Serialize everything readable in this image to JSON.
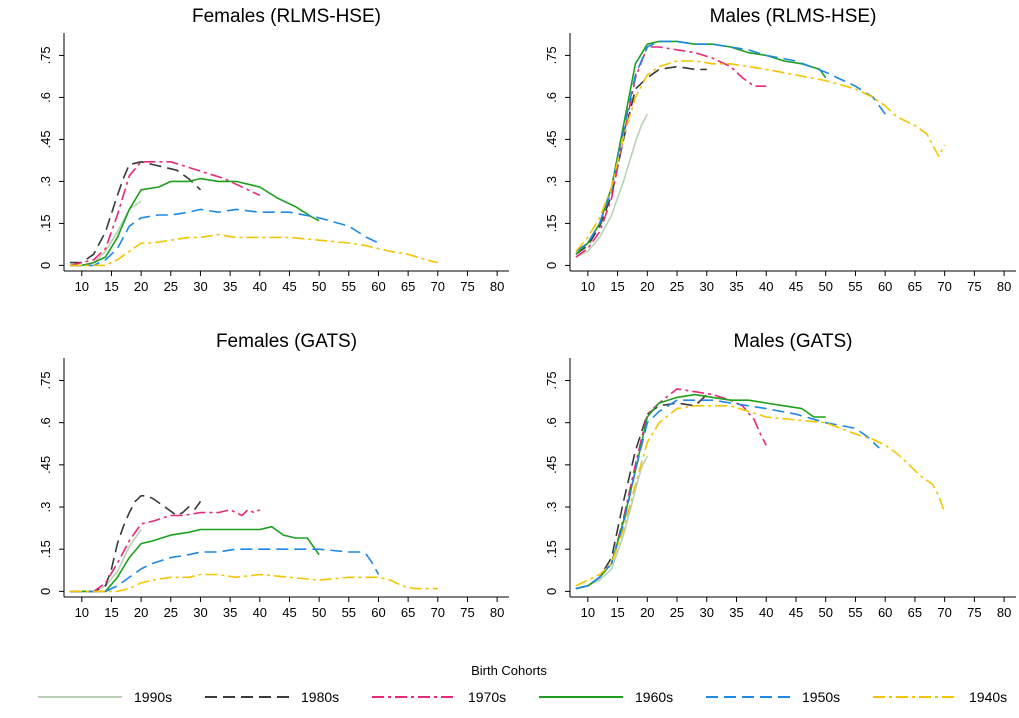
{
  "legend": {
    "title": "Birth Cohorts",
    "entries": [
      {
        "name": "1990s",
        "color": "#b7d3b3",
        "dash": "solid"
      },
      {
        "name": "1980s",
        "color": "#3a3a3a",
        "dash": "longdash"
      },
      {
        "name": "1970s",
        "color": "#e8287a",
        "dash": "longdash-dot"
      },
      {
        "name": "1960s",
        "color": "#1ea01e",
        "dash": "solid"
      },
      {
        "name": "1950s",
        "color": "#1e88e5",
        "dash": "longdash"
      },
      {
        "name": "1940s",
        "color": "#f5c400",
        "dash": "longdash-dot"
      }
    ]
  },
  "chart_data": [
    {
      "type": "line",
      "title": "Females (RLMS-HSE)",
      "xlim": [
        7,
        82
      ],
      "ylim": [
        -0.02,
        0.83
      ],
      "xticks": [
        "10",
        "15",
        "20",
        "25",
        "30",
        "35",
        "40",
        "45",
        "50",
        "55",
        "60",
        "65",
        "70",
        "75",
        "80"
      ],
      "yticks": [
        "0",
        ".15",
        ".3",
        ".45",
        ".6",
        ".75"
      ],
      "series": [
        {
          "name": "1990s",
          "x": [
            8,
            10,
            12,
            14,
            16,
            18,
            20
          ],
          "y": [
            0.0,
            0.0,
            0.01,
            0.05,
            0.12,
            0.2,
            0.23
          ]
        },
        {
          "name": "1980s",
          "x": [
            8,
            10,
            12,
            14,
            16,
            17,
            18,
            20,
            22,
            24,
            26,
            28,
            30
          ],
          "y": [
            0.01,
            0.01,
            0.04,
            0.12,
            0.25,
            0.31,
            0.36,
            0.37,
            0.36,
            0.35,
            0.34,
            0.31,
            0.27
          ]
        },
        {
          "name": "1970s",
          "x": [
            8,
            10,
            12,
            14,
            16,
            18,
            20,
            22,
            25,
            28,
            31,
            34,
            36,
            38,
            40
          ],
          "y": [
            0.0,
            0.01,
            0.02,
            0.06,
            0.18,
            0.32,
            0.37,
            0.37,
            0.37,
            0.35,
            0.33,
            0.31,
            0.29,
            0.27,
            0.25
          ]
        },
        {
          "name": "1960s",
          "x": [
            8,
            10,
            12,
            14,
            16,
            18,
            20,
            23,
            25,
            28,
            30,
            33,
            36,
            38,
            40,
            43,
            46,
            49,
            50
          ],
          "y": [
            0.0,
            0.0,
            0.01,
            0.03,
            0.1,
            0.2,
            0.27,
            0.28,
            0.3,
            0.3,
            0.31,
            0.3,
            0.3,
            0.29,
            0.28,
            0.24,
            0.21,
            0.17,
            0.16
          ]
        },
        {
          "name": "1950s",
          "x": [
            8,
            10,
            12,
            14,
            16,
            18,
            20,
            23,
            25,
            28,
            30,
            33,
            36,
            40,
            45,
            50,
            55,
            58,
            60
          ],
          "y": [
            0.0,
            0.0,
            0.0,
            0.02,
            0.06,
            0.14,
            0.17,
            0.18,
            0.18,
            0.19,
            0.2,
            0.19,
            0.2,
            0.19,
            0.19,
            0.17,
            0.14,
            0.1,
            0.08
          ]
        },
        {
          "name": "1940s",
          "x": [
            8,
            10,
            12,
            14,
            16,
            18,
            20,
            22,
            25,
            28,
            30,
            33,
            36,
            40,
            45,
            50,
            55,
            58,
            60,
            62,
            65,
            68,
            70
          ],
          "y": [
            0.0,
            0.0,
            0.0,
            0.0,
            0.02,
            0.05,
            0.08,
            0.08,
            0.09,
            0.1,
            0.1,
            0.11,
            0.1,
            0.1,
            0.1,
            0.09,
            0.08,
            0.07,
            0.06,
            0.05,
            0.04,
            0.02,
            0.01
          ]
        }
      ]
    },
    {
      "type": "line",
      "title": "Males (RLMS-HSE)",
      "xlim": [
        7,
        82
      ],
      "ylim": [
        -0.02,
        0.83
      ],
      "xticks": [
        "10",
        "15",
        "20",
        "25",
        "30",
        "35",
        "40",
        "45",
        "50",
        "55",
        "60",
        "65",
        "70",
        "75",
        "80"
      ],
      "yticks": [
        "0",
        ".15",
        ".3",
        ".45",
        ".6",
        ".75"
      ],
      "series": [
        {
          "name": "1990s",
          "x": [
            8,
            10,
            12,
            14,
            16,
            18,
            19,
            20
          ],
          "y": [
            0.03,
            0.05,
            0.1,
            0.18,
            0.3,
            0.44,
            0.5,
            0.54
          ]
        },
        {
          "name": "1980s",
          "x": [
            8,
            10,
            12,
            14,
            16,
            18,
            20,
            22,
            25,
            28,
            30
          ],
          "y": [
            0.04,
            0.07,
            0.14,
            0.25,
            0.45,
            0.63,
            0.67,
            0.7,
            0.71,
            0.7,
            0.7
          ]
        },
        {
          "name": "1970s",
          "x": [
            8,
            10,
            12,
            14,
            16,
            18,
            20,
            22,
            25,
            28,
            31,
            34,
            36,
            38,
            40
          ],
          "y": [
            0.03,
            0.06,
            0.12,
            0.24,
            0.46,
            0.67,
            0.78,
            0.78,
            0.77,
            0.76,
            0.74,
            0.71,
            0.67,
            0.64,
            0.64
          ]
        },
        {
          "name": "1960s",
          "x": [
            8,
            10,
            12,
            14,
            16,
            18,
            20,
            22,
            25,
            28,
            31,
            34,
            37,
            40,
            43,
            46,
            49,
            50
          ],
          "y": [
            0.04,
            0.08,
            0.15,
            0.28,
            0.5,
            0.72,
            0.79,
            0.8,
            0.8,
            0.79,
            0.79,
            0.78,
            0.76,
            0.75,
            0.73,
            0.72,
            0.7,
            0.67
          ]
        },
        {
          "name": "1950s",
          "x": [
            8,
            10,
            12,
            14,
            16,
            18,
            20,
            22,
            25,
            28,
            31,
            34,
            37,
            40,
            45,
            50,
            55,
            58,
            60
          ],
          "y": [
            0.05,
            0.08,
            0.15,
            0.27,
            0.48,
            0.68,
            0.78,
            0.8,
            0.8,
            0.79,
            0.79,
            0.78,
            0.77,
            0.75,
            0.73,
            0.69,
            0.64,
            0.6,
            0.54
          ]
        },
        {
          "name": "1940s",
          "x": [
            8,
            10,
            12,
            14,
            16,
            18,
            20,
            22,
            25,
            28,
            31,
            34,
            37,
            40,
            45,
            50,
            55,
            58,
            60,
            62,
            65,
            67,
            68,
            69,
            70
          ],
          "y": [
            0.05,
            0.1,
            0.17,
            0.28,
            0.46,
            0.6,
            0.68,
            0.71,
            0.73,
            0.73,
            0.72,
            0.72,
            0.71,
            0.7,
            0.68,
            0.66,
            0.63,
            0.6,
            0.57,
            0.53,
            0.5,
            0.47,
            0.43,
            0.39,
            0.43
          ]
        }
      ]
    },
    {
      "type": "line",
      "title": "Females (GATS)",
      "xlim": [
        7,
        82
      ],
      "ylim": [
        -0.02,
        0.83
      ],
      "xticks": [
        "10",
        "15",
        "20",
        "25",
        "30",
        "35",
        "40",
        "45",
        "50",
        "55",
        "60",
        "65",
        "70",
        "75",
        "80"
      ],
      "yticks": [
        "0",
        ".15",
        ".3",
        ".45",
        ".6",
        ".75"
      ],
      "series": [
        {
          "name": "1990s",
          "x": [
            8,
            10,
            12,
            14,
            16,
            18,
            20
          ],
          "y": [
            0.0,
            0.0,
            0.0,
            0.02,
            0.07,
            0.16,
            0.22
          ]
        },
        {
          "name": "1980s",
          "x": [
            8,
            10,
            12,
            14,
            15,
            16,
            17,
            18,
            19,
            20,
            21,
            22,
            24,
            26,
            27,
            28,
            29,
            30
          ],
          "y": [
            0.0,
            0.0,
            0.0,
            0.02,
            0.08,
            0.17,
            0.23,
            0.28,
            0.32,
            0.34,
            0.34,
            0.33,
            0.3,
            0.27,
            0.28,
            0.3,
            0.29,
            0.32
          ]
        },
        {
          "name": "1970s",
          "x": [
            8,
            10,
            12,
            14,
            16,
            18,
            20,
            22,
            25,
            27,
            30,
            33,
            35,
            36,
            37,
            38,
            39,
            40
          ],
          "y": [
            0.0,
            0.0,
            0.0,
            0.03,
            0.1,
            0.18,
            0.24,
            0.25,
            0.27,
            0.27,
            0.28,
            0.28,
            0.29,
            0.28,
            0.27,
            0.29,
            0.28,
            0.29
          ]
        },
        {
          "name": "1960s",
          "x": [
            8,
            10,
            12,
            14,
            16,
            18,
            20,
            22,
            25,
            28,
            30,
            33,
            36,
            40,
            42,
            44,
            46,
            48,
            50
          ],
          "y": [
            0.0,
            0.0,
            0.0,
            0.0,
            0.05,
            0.12,
            0.17,
            0.18,
            0.2,
            0.21,
            0.22,
            0.22,
            0.22,
            0.22,
            0.23,
            0.2,
            0.19,
            0.19,
            0.13
          ]
        },
        {
          "name": "1950s",
          "x": [
            8,
            10,
            12,
            14,
            16,
            18,
            20,
            22,
            25,
            28,
            30,
            33,
            36,
            40,
            45,
            50,
            55,
            57,
            58,
            59,
            60
          ],
          "y": [
            0.0,
            0.0,
            0.0,
            0.0,
            0.02,
            0.05,
            0.08,
            0.1,
            0.12,
            0.13,
            0.14,
            0.14,
            0.15,
            0.15,
            0.15,
            0.15,
            0.14,
            0.14,
            0.13,
            0.1,
            0.06
          ]
        },
        {
          "name": "1940s",
          "x": [
            8,
            10,
            12,
            14,
            16,
            18,
            20,
            22,
            25,
            28,
            30,
            33,
            36,
            40,
            45,
            50,
            55,
            60,
            62,
            64,
            66,
            68,
            70
          ],
          "y": [
            0.0,
            0.0,
            0.0,
            0.0,
            0.0,
            0.01,
            0.03,
            0.04,
            0.05,
            0.05,
            0.06,
            0.06,
            0.05,
            0.06,
            0.05,
            0.04,
            0.05,
            0.05,
            0.04,
            0.02,
            0.01,
            0.01,
            0.01
          ]
        }
      ]
    },
    {
      "type": "line",
      "title": "Males (GATS)",
      "xlim": [
        7,
        82
      ],
      "ylim": [
        -0.02,
        0.83
      ],
      "xticks": [
        "10",
        "15",
        "20",
        "25",
        "30",
        "35",
        "40",
        "45",
        "50",
        "55",
        "60",
        "65",
        "70",
        "75",
        "80"
      ],
      "yticks": [
        "0",
        ".15",
        ".3",
        ".45",
        ".6",
        ".75"
      ],
      "series": [
        {
          "name": "1990s",
          "x": [
            8,
            10,
            12,
            14,
            16,
            18,
            19,
            20
          ],
          "y": [
            0.01,
            0.02,
            0.04,
            0.08,
            0.2,
            0.36,
            0.44,
            0.48
          ]
        },
        {
          "name": "1980s",
          "x": [
            8,
            10,
            12,
            14,
            16,
            18,
            20,
            22,
            25,
            28,
            30
          ],
          "y": [
            0.01,
            0.02,
            0.05,
            0.12,
            0.32,
            0.5,
            0.63,
            0.66,
            0.67,
            0.66,
            0.7
          ]
        },
        {
          "name": "1970s",
          "x": [
            8,
            10,
            12,
            14,
            16,
            18,
            20,
            22,
            25,
            28,
            31,
            34,
            36,
            38,
            39,
            40
          ],
          "y": [
            0.01,
            0.02,
            0.05,
            0.1,
            0.26,
            0.45,
            0.63,
            0.67,
            0.72,
            0.71,
            0.7,
            0.68,
            0.66,
            0.61,
            0.56,
            0.52
          ]
        },
        {
          "name": "1960s",
          "x": [
            8,
            10,
            12,
            14,
            16,
            18,
            20,
            22,
            25,
            28,
            31,
            34,
            37,
            40,
            43,
            46,
            48,
            50
          ],
          "y": [
            0.01,
            0.02,
            0.05,
            0.1,
            0.25,
            0.43,
            0.62,
            0.67,
            0.69,
            0.7,
            0.69,
            0.68,
            0.68,
            0.67,
            0.66,
            0.65,
            0.62,
            0.62
          ]
        },
        {
          "name": "1950s",
          "x": [
            8,
            10,
            12,
            14,
            16,
            18,
            20,
            22,
            25,
            28,
            31,
            34,
            37,
            40,
            45,
            50,
            55,
            57,
            59
          ],
          "y": [
            0.01,
            0.02,
            0.05,
            0.1,
            0.24,
            0.43,
            0.6,
            0.64,
            0.68,
            0.68,
            0.68,
            0.67,
            0.66,
            0.65,
            0.63,
            0.6,
            0.58,
            0.55,
            0.51
          ]
        },
        {
          "name": "1940s",
          "x": [
            8,
            10,
            12,
            14,
            16,
            18,
            20,
            22,
            25,
            28,
            31,
            34,
            37,
            40,
            45,
            50,
            55,
            58,
            60,
            62,
            64,
            66,
            68,
            69,
            70
          ],
          "y": [
            0.02,
            0.04,
            0.06,
            0.1,
            0.22,
            0.38,
            0.53,
            0.6,
            0.65,
            0.66,
            0.66,
            0.66,
            0.64,
            0.62,
            0.61,
            0.6,
            0.56,
            0.54,
            0.52,
            0.49,
            0.45,
            0.41,
            0.38,
            0.34,
            0.28
          ]
        }
      ]
    }
  ]
}
